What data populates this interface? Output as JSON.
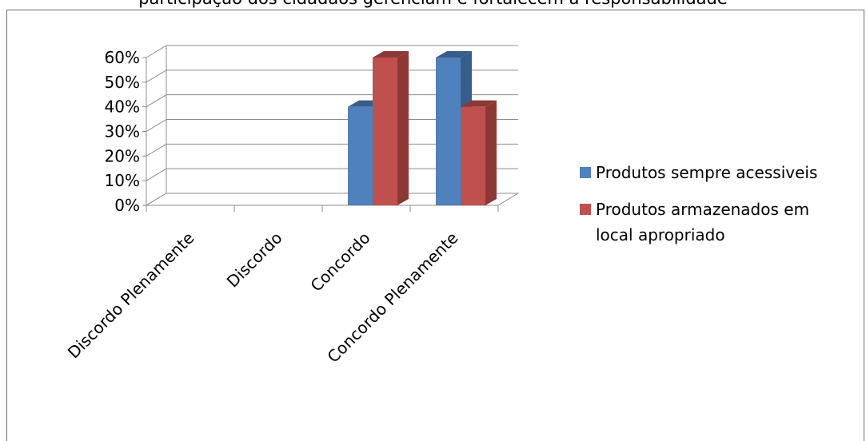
{
  "caption": "participação dos cidadãos gerenciam e fortalecem a responsabilidade",
  "colors": {
    "series1": "#4f81bd",
    "series1_side": "#385d8a",
    "series2": "#c0504d",
    "series2_side": "#8c3836",
    "grid": "#8c8c8c"
  },
  "chart_data": {
    "type": "bar",
    "style": "3d-clustered-column",
    "categories": [
      "Discordo Plenamente",
      "Discordo",
      "Concordo",
      "Concordo Plenamente"
    ],
    "series": [
      {
        "name": "Produtos sempre acessiveis",
        "values": [
          0,
          0,
          40,
          60
        ]
      },
      {
        "name": "Produtos armazenados em local apropriado",
        "values": [
          0,
          0,
          60,
          40
        ]
      }
    ],
    "y_ticks": [
      "0%",
      "10%",
      "20%",
      "30%",
      "40%",
      "50%",
      "60%"
    ],
    "ylim": [
      0,
      60
    ],
    "grid": true,
    "legend_position": "right"
  }
}
